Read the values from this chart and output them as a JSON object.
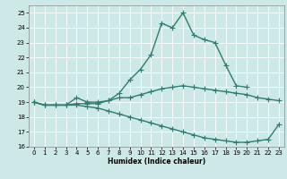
{
  "title": "",
  "xlabel": "Humidex (Indice chaleur)",
  "background_color": "#cce9e8",
  "grid_color": "#ffffff",
  "line_color": "#2e7d6e",
  "x_values": [
    0,
    1,
    2,
    3,
    4,
    5,
    6,
    7,
    8,
    9,
    10,
    11,
    12,
    13,
    14,
    15,
    16,
    17,
    18,
    19,
    20,
    21,
    22,
    23
  ],
  "line1": [
    19.0,
    18.8,
    18.8,
    18.8,
    19.3,
    19.0,
    19.0,
    19.1,
    19.6,
    20.5,
    21.2,
    22.2,
    24.3,
    24.0,
    25.0,
    23.5,
    23.2,
    23.0,
    21.5,
    20.1,
    20.0,
    null,
    null,
    null
  ],
  "line2": [
    19.0,
    18.8,
    18.8,
    18.8,
    18.9,
    18.9,
    18.9,
    19.1,
    19.3,
    19.3,
    19.5,
    19.7,
    19.9,
    20.0,
    20.1,
    20.0,
    19.9,
    19.8,
    19.7,
    19.6,
    19.5,
    19.3,
    19.2,
    19.1
  ],
  "line3": [
    19.0,
    18.8,
    18.8,
    18.8,
    18.8,
    18.7,
    18.6,
    18.4,
    18.2,
    18.0,
    17.8,
    17.6,
    17.4,
    17.2,
    17.0,
    16.8,
    16.6,
    16.5,
    16.4,
    16.3,
    16.3,
    16.4,
    16.5,
    17.5
  ],
  "ylim": [
    16,
    25.5
  ],
  "xlim": [
    -0.5,
    23.5
  ],
  "yticks": [
    16,
    17,
    18,
    19,
    20,
    21,
    22,
    23,
    24,
    25
  ],
  "xticks": [
    0,
    1,
    2,
    3,
    4,
    5,
    6,
    7,
    8,
    9,
    10,
    11,
    12,
    13,
    14,
    15,
    16,
    17,
    18,
    19,
    20,
    21,
    22,
    23
  ],
  "markersize": 2.5,
  "linewidth": 1.0
}
